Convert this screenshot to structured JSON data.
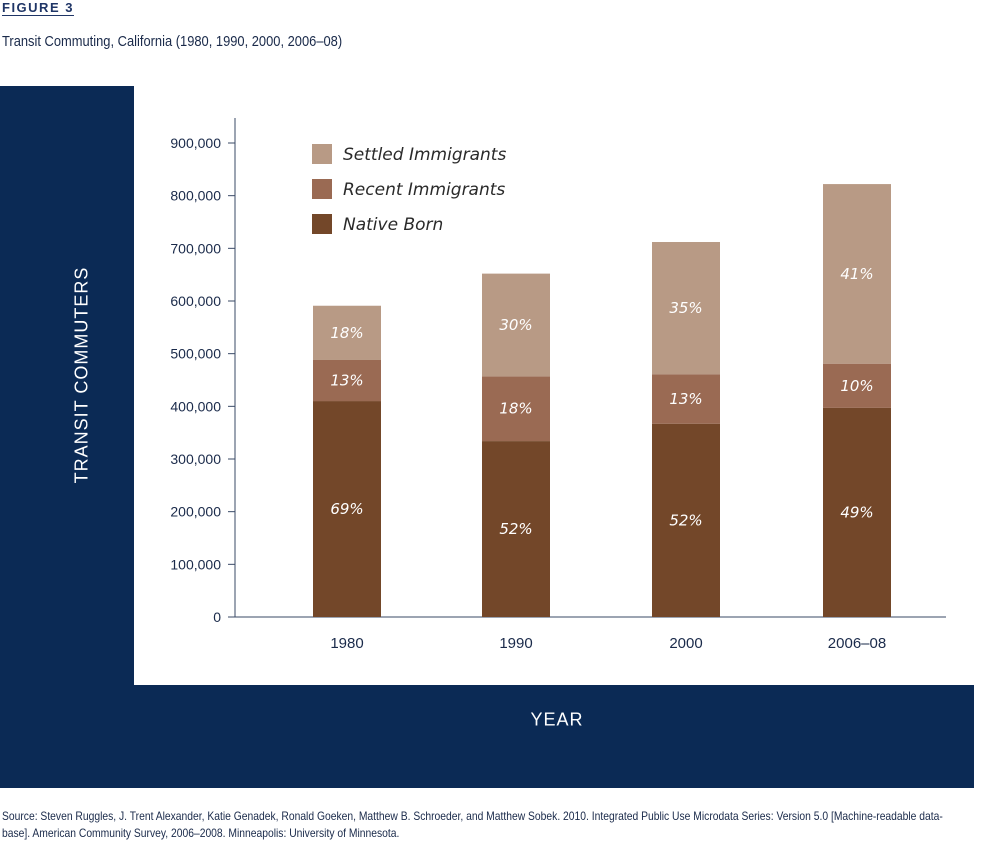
{
  "figure_label": "FIGURE 3",
  "title": "Transit Commuting, California (1980, 1990, 2000, 2006–08)",
  "source": "Source: Steven Ruggles, J. Trent Alexander, Katie Genadek, Ronald Goeken, Matthew B. Schroeder, and Matthew Sobek. 2010. Integrated Public Use Microdata Series: Version 5.0 [Machine-readable data-base]. American Community Survey, 2006–2008. Minneapolis: University of Minnesota.",
  "chart_data": {
    "type": "bar",
    "stacked": true,
    "categories": [
      "1980",
      "1990",
      "2000",
      "2006–08"
    ],
    "xlabel": "YEAR",
    "ylabel": "TRANSIT COMMUTERS",
    "ylim": [
      0,
      900000
    ],
    "yticks": [
      0,
      100000,
      200000,
      300000,
      400000,
      500000,
      600000,
      700000,
      800000,
      900000
    ],
    "ytick_labels": [
      "0",
      "100,000",
      "200,000",
      "300,000",
      "400,000",
      "500,000",
      "600,000",
      "700,000",
      "800,000",
      "900,000"
    ],
    "grid": false,
    "legend_position": "top-left",
    "series": [
      {
        "name": "Native Born",
        "color": "#734729",
        "values": [
          410000,
          334000,
          367000,
          397000
        ],
        "labels": [
          "69%",
          "52%",
          "52%",
          "49%"
        ]
      },
      {
        "name": "Recent Immigrants",
        "color": "#9a6a53",
        "values": [
          78000,
          123000,
          94000,
          84000
        ],
        "labels": [
          "13%",
          "18%",
          "13%",
          "10%"
        ]
      },
      {
        "name": "Settled Immigrants",
        "color": "#b89a85",
        "values": [
          103000,
          195000,
          251000,
          341000
        ],
        "labels": [
          "18%",
          "30%",
          "35%",
          "41%"
        ]
      }
    ]
  }
}
